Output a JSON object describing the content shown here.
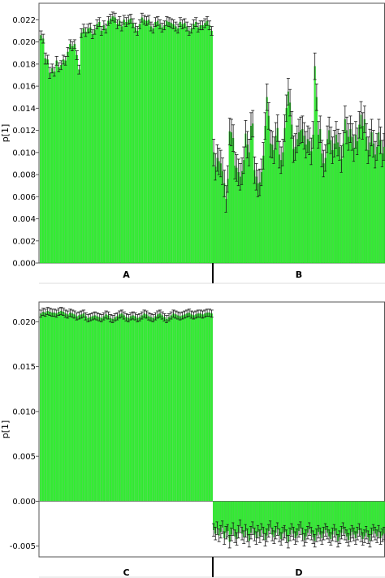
{
  "colors": {
    "bar": "#33ee33",
    "bar_edge": "#22c322",
    "error": "#1a1a1a",
    "axis": "#555555"
  },
  "chart_data": [
    {
      "type": "bar",
      "ylabel": "p[1]",
      "ylim": [
        0,
        0.0235
      ],
      "yticks": [
        "0.000",
        "0.002",
        "0.004",
        "0.006",
        "0.008",
        "0.010",
        "0.012",
        "0.014",
        "0.016",
        "0.018",
        "0.020",
        "0.022"
      ],
      "groups": [
        {
          "label": "A",
          "values": [
            0.0206,
            0.0203,
            0.0185,
            0.0184,
            0.0172,
            0.0176,
            0.0173,
            0.0183,
            0.0177,
            0.0179,
            0.0184,
            0.0183,
            0.0191,
            0.0198,
            0.0196,
            0.0198,
            0.0188,
            0.0175,
            0.0208,
            0.0212,
            0.0209,
            0.0212,
            0.0213,
            0.0207,
            0.0211,
            0.0216,
            0.0218,
            0.021,
            0.0215,
            0.0212,
            0.0219,
            0.0221,
            0.0223,
            0.0222,
            0.0216,
            0.0219,
            0.0214,
            0.022,
            0.0218,
            0.022,
            0.0221,
            0.0217,
            0.0213,
            0.021,
            0.0216,
            0.0222,
            0.022,
            0.0219,
            0.022,
            0.0214,
            0.0212,
            0.0218,
            0.0219,
            0.0216,
            0.0213,
            0.0215,
            0.0219,
            0.0218,
            0.0217,
            0.0216,
            0.0214,
            0.0212,
            0.0218,
            0.0216,
            0.0217,
            0.0214,
            0.021,
            0.0212,
            0.0216,
            0.0218,
            0.0213,
            0.0215,
            0.0215,
            0.0217,
            0.0219,
            0.0215,
            0.021
          ],
          "errors": [
            0.0004,
            0.0004,
            0.0005,
            0.0004,
            0.0005,
            0.0004,
            0.0004,
            0.0004,
            0.0004,
            0.0004,
            0.0004,
            0.0004,
            0.0004,
            0.0004,
            0.0004,
            0.0004,
            0.0004,
            0.0004,
            0.0004,
            0.0004,
            0.0004,
            0.0004,
            0.0004,
            0.0004,
            0.0004,
            0.0004,
            0.0004,
            0.0004,
            0.0004,
            0.0004,
            0.0004,
            0.0004,
            0.0004,
            0.0004,
            0.0004,
            0.0004,
            0.0004,
            0.0004,
            0.0004,
            0.0004,
            0.0004,
            0.0004,
            0.0004,
            0.0004,
            0.0004,
            0.0004,
            0.0004,
            0.0004,
            0.0004,
            0.0004,
            0.0004,
            0.0004,
            0.0004,
            0.0004,
            0.0004,
            0.0004,
            0.0004,
            0.0004,
            0.0004,
            0.0004,
            0.0004,
            0.0004,
            0.0004,
            0.0004,
            0.0004,
            0.0004,
            0.0004,
            0.0004,
            0.0004,
            0.0004,
            0.0004,
            0.0004,
            0.0004,
            0.0004,
            0.0004,
            0.0004,
            0.0004
          ]
        },
        {
          "label": "B",
          "values": [
            0.01,
            0.0087,
            0.0095,
            0.0092,
            0.009,
            0.0083,
            0.0072,
            0.0058,
            0.0076,
            0.0119,
            0.0118,
            0.0113,
            0.0088,
            0.0086,
            0.0082,
            0.0078,
            0.0083,
            0.0093,
            0.0117,
            0.0107,
            0.01,
            0.0124,
            0.0126,
            0.0084,
            0.0078,
            0.0072,
            0.0073,
            0.0082,
            0.0097,
            0.0124,
            0.015,
            0.0133,
            0.0108,
            0.0107,
            0.0102,
            0.0115,
            0.0122,
            0.0098,
            0.0093,
            0.01,
            0.0122,
            0.014,
            0.0155,
            0.0145,
            0.0125,
            0.0103,
            0.0105,
            0.0112,
            0.0118,
            0.012,
            0.0121,
            0.0115,
            0.0107,
            0.0112,
            0.011,
            0.0101,
            0.0116,
            0.0178,
            0.015,
            0.0116,
            0.0121,
            0.0099,
            0.009,
            0.0095,
            0.0112,
            0.012,
            0.0111,
            0.0102,
            0.0108,
            0.0116,
            0.0109,
            0.0105,
            0.0094,
            0.0108,
            0.013,
            0.012,
            0.0114,
            0.0121,
            0.0114,
            0.0104,
            0.0116,
            0.011,
            0.0125,
            0.0134,
            0.0124,
            0.013,
            0.0114,
            0.0102,
            0.0109,
            0.0118,
            0.0108,
            0.0098,
            0.0105,
            0.0118,
            0.0111,
            0.0099,
            0.0105
          ],
          "errors": [
            0.0012,
            0.0012,
            0.0012,
            0.0012,
            0.0012,
            0.0012,
            0.0012,
            0.0012,
            0.0012,
            0.0012,
            0.0012,
            0.0012,
            0.0012,
            0.0012,
            0.0012,
            0.0012,
            0.0012,
            0.0012,
            0.0012,
            0.0012,
            0.0012,
            0.0012,
            0.0012,
            0.0012,
            0.0012,
            0.0012,
            0.0012,
            0.0012,
            0.0012,
            0.0012,
            0.0012,
            0.0012,
            0.0012,
            0.0012,
            0.0012,
            0.0012,
            0.0012,
            0.0012,
            0.0012,
            0.0012,
            0.0012,
            0.0012,
            0.0012,
            0.0012,
            0.0012,
            0.0012,
            0.0012,
            0.0012,
            0.0012,
            0.0012,
            0.0012,
            0.0012,
            0.0012,
            0.0012,
            0.0012,
            0.0012,
            0.0012,
            0.0012,
            0.0012,
            0.0012,
            0.0012,
            0.0012,
            0.0012,
            0.0012,
            0.0012,
            0.0012,
            0.0012,
            0.0012,
            0.0012,
            0.0012,
            0.0012,
            0.0012,
            0.0012,
            0.0012,
            0.0012,
            0.0012,
            0.0012,
            0.0012,
            0.0012,
            0.0012,
            0.0012,
            0.0012,
            0.0012,
            0.0012,
            0.0012,
            0.0012,
            0.0012,
            0.0012,
            0.0012,
            0.0012,
            0.0012,
            0.0012,
            0.0012,
            0.0012,
            0.0012,
            0.0012,
            0.0012
          ]
        }
      ]
    },
    {
      "type": "bar",
      "ylabel": "p[1]",
      "ylim": [
        -0.0062,
        0.0222
      ],
      "yticks": [
        "-0.005",
        "0.000",
        "0.005",
        "0.010",
        "0.015",
        "0.020"
      ],
      "groups": [
        {
          "label": "C",
          "values": [
            0.0209,
            0.0211,
            0.021,
            0.0212,
            0.0211,
            0.021,
            0.021,
            0.0209,
            0.0211,
            0.0212,
            0.0211,
            0.0209,
            0.0208,
            0.021,
            0.0209,
            0.0208,
            0.0206,
            0.0207,
            0.0208,
            0.0209,
            0.0206,
            0.0204,
            0.0205,
            0.0206,
            0.0207,
            0.0206,
            0.0205,
            0.0204,
            0.0206,
            0.0208,
            0.0207,
            0.0204,
            0.0203,
            0.0205,
            0.0206,
            0.0208,
            0.0209,
            0.0207,
            0.0205,
            0.0204,
            0.0206,
            0.0207,
            0.0206,
            0.0204,
            0.0205,
            0.0207,
            0.0209,
            0.0208,
            0.0206,
            0.0205,
            0.0204,
            0.0206,
            0.0208,
            0.0209,
            0.0207,
            0.0205,
            0.0203,
            0.0205,
            0.0207,
            0.0209,
            0.0208,
            0.0207,
            0.0206,
            0.0207,
            0.0208,
            0.0209,
            0.021,
            0.0208,
            0.0207,
            0.0208,
            0.0209,
            0.0209,
            0.0208,
            0.0209,
            0.021,
            0.021,
            0.0209
          ],
          "errors": [
            0.0004,
            0.0004,
            0.0004,
            0.0004,
            0.0004,
            0.0004,
            0.0004,
            0.0004,
            0.0004,
            0.0004,
            0.0004,
            0.0004,
            0.0004,
            0.0004,
            0.0004,
            0.0004,
            0.0004,
            0.0004,
            0.0004,
            0.0004,
            0.0004,
            0.0004,
            0.0004,
            0.0004,
            0.0004,
            0.0004,
            0.0004,
            0.0004,
            0.0004,
            0.0004,
            0.0004,
            0.0004,
            0.0004,
            0.0004,
            0.0004,
            0.0004,
            0.0004,
            0.0004,
            0.0004,
            0.0004,
            0.0004,
            0.0004,
            0.0004,
            0.0004,
            0.0004,
            0.0004,
            0.0004,
            0.0004,
            0.0004,
            0.0004,
            0.0004,
            0.0004,
            0.0004,
            0.0004,
            0.0004,
            0.0004,
            0.0004,
            0.0004,
            0.0004,
            0.0004,
            0.0004,
            0.0004,
            0.0004,
            0.0004,
            0.0004,
            0.0004,
            0.0004,
            0.0004,
            0.0004,
            0.0004,
            0.0004,
            0.0004,
            0.0004,
            0.0004,
            0.0004,
            0.0004,
            0.0004
          ]
        },
        {
          "label": "D",
          "values": [
            -0.0032,
            -0.0036,
            -0.003,
            -0.0038,
            -0.0034,
            -0.0029,
            -0.0041,
            -0.0035,
            -0.0033,
            -0.0045,
            -0.0037,
            -0.0031,
            -0.0039,
            -0.0042,
            -0.0034,
            -0.0028,
            -0.0036,
            -0.004,
            -0.0033,
            -0.0038,
            -0.0044,
            -0.0035,
            -0.003,
            -0.0037,
            -0.0041,
            -0.0034,
            -0.0039,
            -0.0032,
            -0.0036,
            -0.0043,
            -0.0038,
            -0.0033,
            -0.0029,
            -0.0037,
            -0.004,
            -0.0035,
            -0.0031,
            -0.0038,
            -0.0042,
            -0.0036,
            -0.0034,
            -0.0039,
            -0.0045,
            -0.0037,
            -0.0032,
            -0.0036,
            -0.0041,
            -0.0038,
            -0.0033,
            -0.003,
            -0.0037,
            -0.0043,
            -0.0039,
            -0.0035,
            -0.0031,
            -0.0036,
            -0.004,
            -0.0044,
            -0.0038,
            -0.0034,
            -0.0037,
            -0.0041,
            -0.0036,
            -0.0032,
            -0.0035,
            -0.0039,
            -0.0042,
            -0.0037,
            -0.0033,
            -0.0038,
            -0.0044,
            -0.004,
            -0.0035,
            -0.0031,
            -0.0036,
            -0.0039,
            -0.0043,
            -0.0038,
            -0.0034,
            -0.0037,
            -0.0041,
            -0.0036,
            -0.0032,
            -0.0038,
            -0.0042,
            -0.0039,
            -0.0035,
            -0.004,
            -0.0044,
            -0.0037,
            -0.0033,
            -0.0036,
            -0.0039,
            -0.0034,
            -0.0041,
            -0.0038,
            -0.0036
          ],
          "errors": [
            0.0007,
            0.0007,
            0.0007,
            0.0007,
            0.0007,
            0.0007,
            0.0007,
            0.0007,
            0.0007,
            0.0007,
            0.0007,
            0.0007,
            0.0007,
            0.0007,
            0.0007,
            0.0007,
            0.0007,
            0.0007,
            0.0007,
            0.0007,
            0.0007,
            0.0007,
            0.0007,
            0.0007,
            0.0007,
            0.0007,
            0.0007,
            0.0007,
            0.0007,
            0.0007,
            0.0007,
            0.0007,
            0.0007,
            0.0007,
            0.0007,
            0.0007,
            0.0007,
            0.0007,
            0.0007,
            0.0007,
            0.0007,
            0.0007,
            0.0007,
            0.0007,
            0.0007,
            0.0007,
            0.0007,
            0.0007,
            0.0007,
            0.0007,
            0.0007,
            0.0007,
            0.0007,
            0.0007,
            0.0007,
            0.0007,
            0.0007,
            0.0007,
            0.0007,
            0.0007,
            0.0007,
            0.0007,
            0.0007,
            0.0007,
            0.0007,
            0.0007,
            0.0007,
            0.0007,
            0.0007,
            0.0007,
            0.0007,
            0.0007,
            0.0007,
            0.0007,
            0.0007,
            0.0007,
            0.0007,
            0.0007,
            0.0007,
            0.0007,
            0.0007,
            0.0007,
            0.0007,
            0.0007,
            0.0007,
            0.0007,
            0.0007,
            0.0007,
            0.0007,
            0.0007,
            0.0007,
            0.0007,
            0.0007,
            0.0007,
            0.0007,
            0.0007,
            0.0007
          ]
        }
      ]
    }
  ]
}
